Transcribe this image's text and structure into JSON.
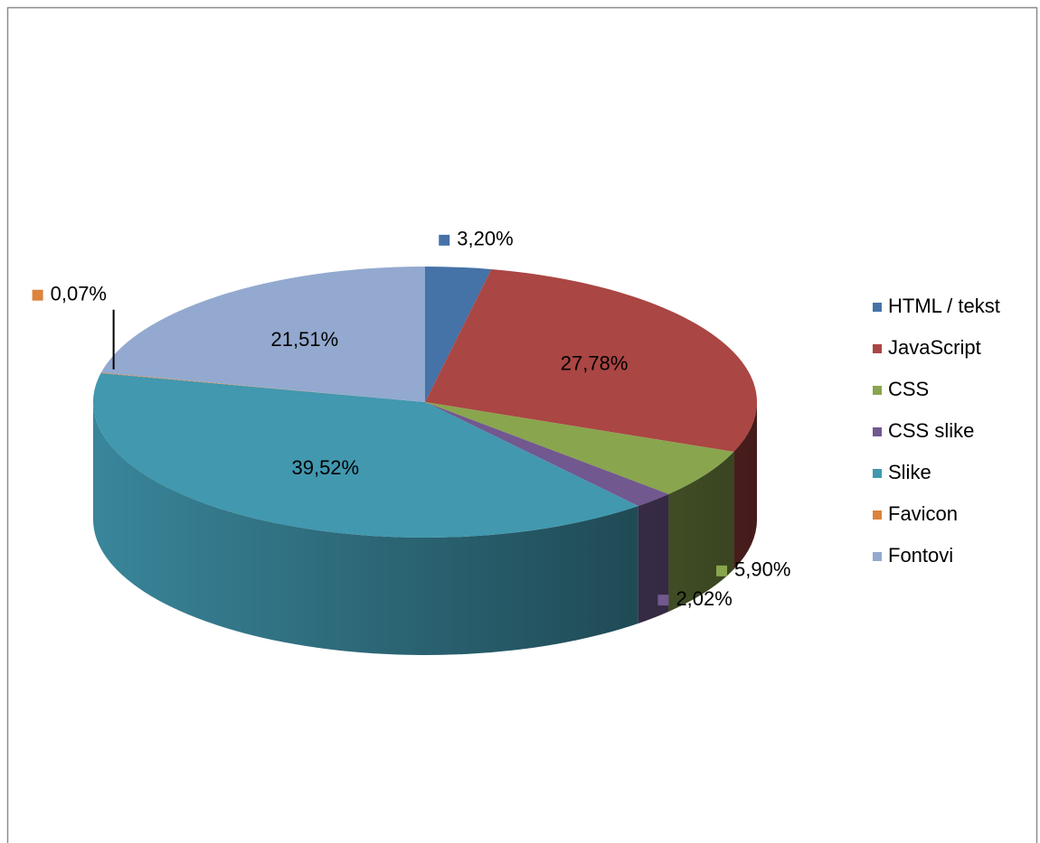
{
  "chart_data": {
    "type": "pie",
    "categories": [
      "HTML / tekst",
      "JavaScript",
      "CSS",
      "CSS slike",
      "Slike",
      "Favicon",
      "Fontovi"
    ],
    "values": [
      3.2,
      27.78,
      5.9,
      2.02,
      39.52,
      0.07,
      21.51
    ],
    "value_labels": [
      "3,20%",
      "27,78%",
      "5,90%",
      "2,02%",
      "39,52%",
      "0,07%",
      "21,51%"
    ],
    "colors": [
      "#4572a7",
      "#aa4643",
      "#89a54e",
      "#71588f",
      "#4198af",
      "#db843d",
      "#93a9cf"
    ],
    "legend": "right"
  }
}
